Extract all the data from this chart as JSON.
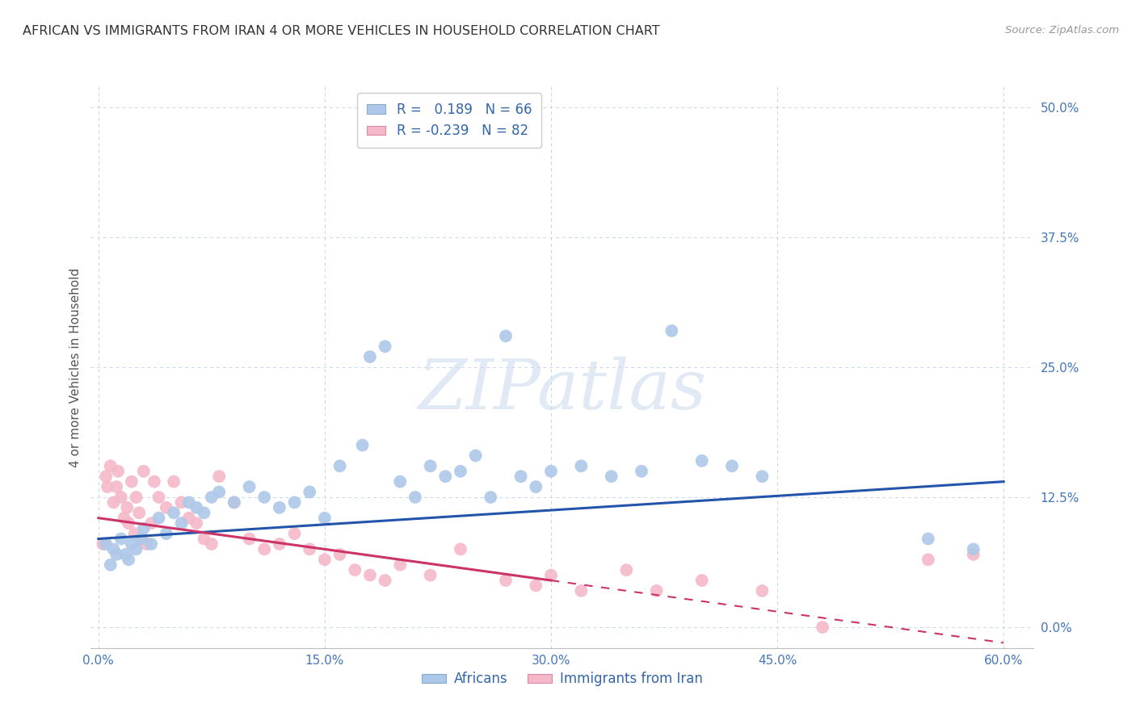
{
  "title": "AFRICAN VS IMMIGRANTS FROM IRAN 4 OR MORE VEHICLES IN HOUSEHOLD CORRELATION CHART",
  "source": "Source: ZipAtlas.com",
  "xlabel_vals": [
    0.0,
    15.0,
    30.0,
    45.0,
    60.0
  ],
  "ylabel": "4 or more Vehicles in Household",
  "ylabel_vals": [
    0.0,
    12.5,
    25.0,
    37.5,
    50.0
  ],
  "xlim": [
    -0.5,
    62.0
  ],
  "ylim": [
    -2.0,
    52.0
  ],
  "africans_R": 0.189,
  "africans_N": 66,
  "iran_R": -0.239,
  "iran_N": 82,
  "blue_color": "#adc8e8",
  "blue_line_color": "#2255aa",
  "pink_color": "#f5b8c8",
  "pink_line_color": "#cc3366",
  "background_color": "#ffffff",
  "grid_color": "#c8d4e8",
  "africans_x": [
    0.5,
    0.8,
    1.0,
    1.2,
    1.5,
    1.8,
    2.0,
    2.2,
    2.5,
    2.8,
    3.0,
    3.5,
    4.0,
    4.5,
    5.0,
    5.5,
    6.0,
    6.5,
    7.0,
    7.5,
    8.0,
    9.0,
    10.0,
    11.0,
    12.0,
    13.0,
    14.0,
    15.0,
    16.0,
    17.5,
    18.0,
    19.0,
    20.0,
    21.0,
    22.0,
    23.0,
    24.0,
    25.0,
    26.0,
    27.0,
    28.0,
    29.0,
    30.0,
    32.0,
    34.0,
    36.0,
    38.0,
    40.0,
    42.0,
    44.0,
    55.0,
    58.0
  ],
  "africans_y": [
    8.0,
    6.0,
    7.5,
    7.0,
    8.5,
    7.0,
    6.5,
    8.0,
    7.5,
    8.5,
    9.5,
    8.0,
    10.5,
    9.0,
    11.0,
    10.0,
    12.0,
    11.5,
    11.0,
    12.5,
    13.0,
    12.0,
    13.5,
    12.5,
    11.5,
    12.0,
    13.0,
    10.5,
    15.5,
    17.5,
    26.0,
    27.0,
    14.0,
    12.5,
    15.5,
    14.5,
    15.0,
    16.5,
    12.5,
    28.0,
    14.5,
    13.5,
    15.0,
    15.5,
    14.5,
    15.0,
    28.5,
    16.0,
    15.5,
    14.5,
    8.5,
    7.5
  ],
  "iran_x": [
    0.3,
    0.5,
    0.6,
    0.8,
    1.0,
    1.2,
    1.3,
    1.5,
    1.7,
    1.9,
    2.0,
    2.2,
    2.4,
    2.5,
    2.7,
    2.9,
    3.0,
    3.2,
    3.5,
    3.7,
    4.0,
    4.5,
    5.0,
    5.5,
    6.0,
    6.5,
    7.0,
    7.5,
    8.0,
    9.0,
    10.0,
    11.0,
    12.0,
    13.0,
    14.0,
    15.0,
    16.0,
    17.0,
    18.0,
    19.0,
    20.0,
    22.0,
    24.0,
    27.0,
    29.0,
    30.0,
    32.0,
    35.0,
    37.0,
    40.0,
    44.0,
    48.0,
    55.0,
    58.0
  ],
  "iran_y": [
    8.0,
    14.5,
    13.5,
    15.5,
    12.0,
    13.5,
    15.0,
    12.5,
    10.5,
    11.5,
    10.0,
    14.0,
    9.0,
    12.5,
    11.0,
    8.5,
    15.0,
    8.0,
    10.0,
    14.0,
    12.5,
    11.5,
    14.0,
    12.0,
    10.5,
    10.0,
    8.5,
    8.0,
    14.5,
    12.0,
    8.5,
    7.5,
    8.0,
    9.0,
    7.5,
    6.5,
    7.0,
    5.5,
    5.0,
    4.5,
    6.0,
    5.0,
    7.5,
    4.5,
    4.0,
    5.0,
    3.5,
    5.5,
    3.5,
    4.5,
    3.5,
    0.0,
    6.5,
    7.0
  ],
  "iran_solid_end_x": 30.0,
  "africa_line_x0": 0.0,
  "africa_line_y0": 8.5,
  "africa_line_x1": 60.0,
  "africa_line_y1": 14.0,
  "iran_line_x0": 0.0,
  "iran_line_y0": 10.5,
  "iran_line_x1": 60.0,
  "iran_line_y1": -1.5
}
